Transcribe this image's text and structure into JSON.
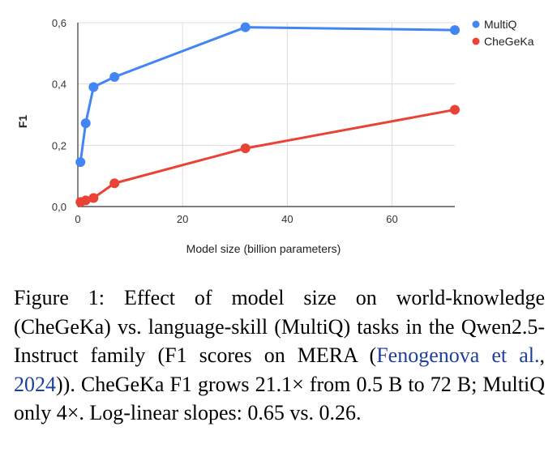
{
  "chart_data": {
    "type": "line",
    "xlabel": "Model size (billion parameters)",
    "ylabel": "F1",
    "xlim": [
      0,
      72
    ],
    "ylim": [
      0,
      0.6
    ],
    "x_ticks": [
      "0",
      "20",
      "40",
      "60"
    ],
    "x_tick_values": [
      0,
      20,
      40,
      60
    ],
    "y_ticks": [
      "0,0",
      "0,2",
      "0,4",
      "0,6"
    ],
    "y_tick_values": [
      0,
      0.2,
      0.4,
      0.6
    ],
    "grid": true,
    "legend_position": "top-right",
    "series": [
      {
        "name": "MultiQ",
        "color": "#4285f4",
        "x": [
          0.5,
          1.5,
          3,
          7,
          32,
          72
        ],
        "y": [
          0.145,
          0.272,
          0.39,
          0.423,
          0.585,
          0.576
        ]
      },
      {
        "name": "CheGeKa",
        "color": "#ea4335",
        "x": [
          0.5,
          1.5,
          3,
          7,
          32,
          72
        ],
        "y": [
          0.015,
          0.02,
          0.028,
          0.076,
          0.19,
          0.316
        ]
      }
    ]
  },
  "caption": {
    "figure_label": "Figure 1:",
    "text_before_cite": " Effect of model size on world-knowledge (CheGeKa) vs. language-skill (MultiQ) tasks in the Qwen2.5-Instruct family (F1 scores on MERA (",
    "cite_authors": "Fenogenova et al.",
    "cite_sep": ", ",
    "cite_year": "2024",
    "text_after_cite": ")). CheGeKa F1 grows 21.1× from 0.5 B to 72 B; MultiQ only 4×. Log-linear slopes: 0.65 vs. 0.26."
  }
}
